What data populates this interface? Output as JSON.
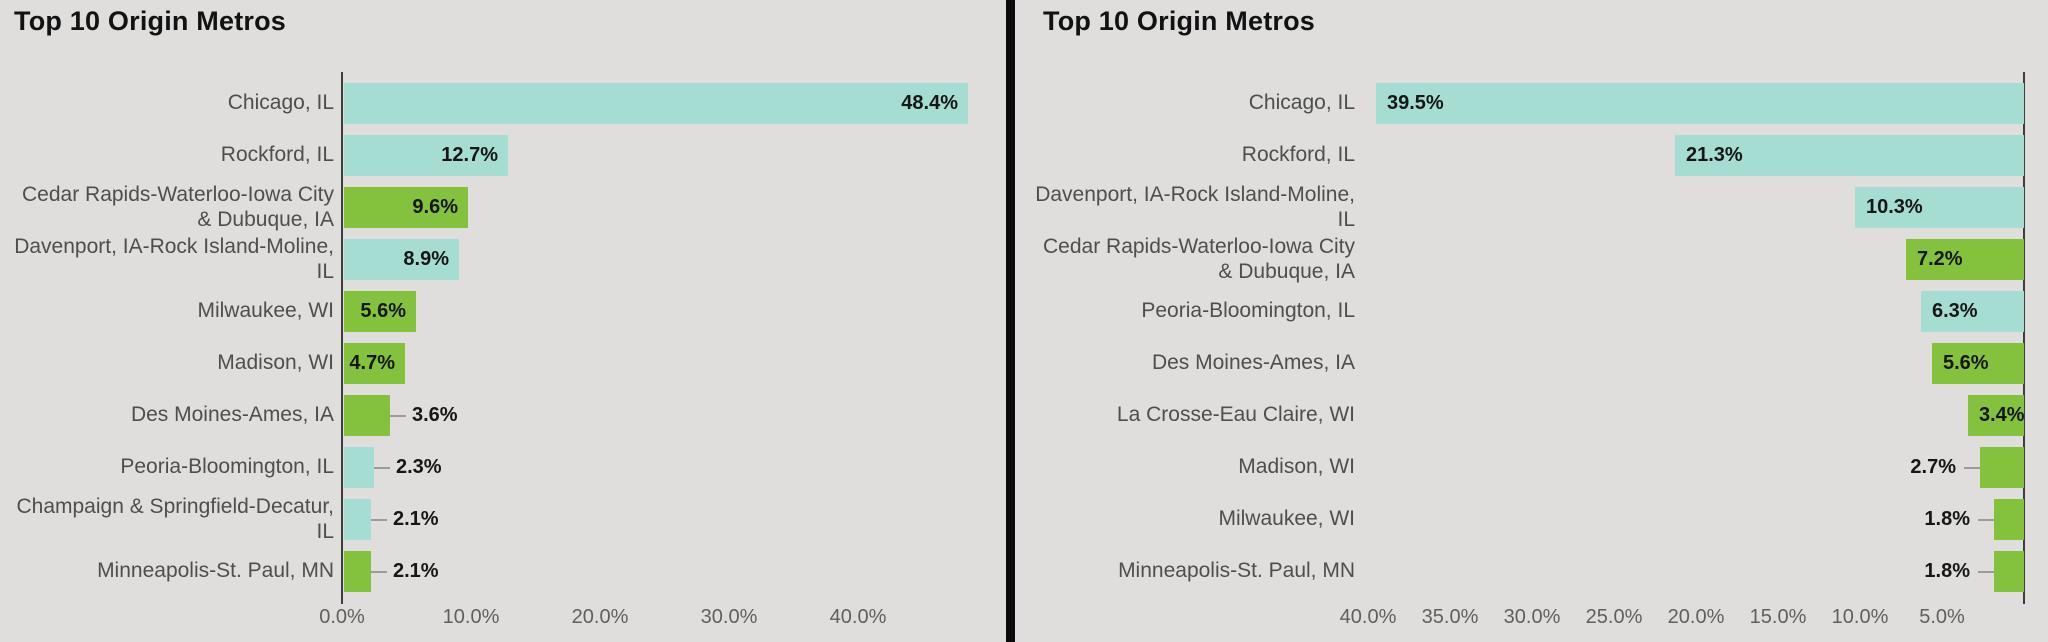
{
  "page": {
    "background_color": "#dfdedc",
    "divider_color": "#0b0b0b"
  },
  "colors": {
    "teal_bar": "#a6ddd2",
    "green_bar": "#84c23e",
    "axis_line": "#3a3f3c",
    "category_text": "#4e4e4e",
    "value_text": "#161616",
    "tick_text": "#5f5f5f",
    "leader_line": "#9b9b98",
    "title_text": "#121212"
  },
  "chart_data": [
    {
      "type": "bar",
      "orientation": "horizontal",
      "direction": "left-to-right",
      "title": "Top 10 Origin Metros",
      "xlabel": "",
      "ylabel": "",
      "grid": false,
      "legend": false,
      "axis_range_percent": [
        0,
        51.5
      ],
      "x_tick_labels": [
        "0.0%",
        "10.0%",
        "20.0%",
        "30.0%",
        "40.0%"
      ],
      "x_tick_values": [
        0,
        10,
        20,
        30,
        40
      ],
      "categories": [
        "Chicago, IL",
        "Rockford, IL",
        "Cedar Rapids-Waterloo-Iowa City & Dubuque, IA",
        "Davenport, IA-Rock Island-Moline, IL",
        "Milwaukee, WI",
        "Madison, WI",
        "Des Moines-Ames, IA",
        "Peoria-Bloomington, IL",
        "Champaign & Springfield-Decatur, IL",
        "Minneapolis-St. Paul, MN"
      ],
      "category_lines": [
        [
          "Chicago, IL"
        ],
        [
          "Rockford, IL"
        ],
        [
          "Cedar Rapids-Waterloo-Iowa City",
          "& Dubuque, IA"
        ],
        [
          "Davenport, IA-Rock Island-Moline,",
          "IL"
        ],
        [
          "Milwaukee, WI"
        ],
        [
          "Madison, WI"
        ],
        [
          "Des Moines-Ames, IA"
        ],
        [
          "Peoria-Bloomington, IL"
        ],
        [
          "Champaign & Springfield-Decatur,",
          "IL"
        ],
        [
          "Minneapolis-St. Paul, MN"
        ]
      ],
      "values": [
        48.4,
        12.7,
        9.6,
        8.9,
        5.6,
        4.7,
        3.6,
        2.3,
        2.1,
        2.1
      ],
      "value_labels": [
        "48.4%",
        "12.7%",
        "9.6%",
        "8.9%",
        "5.6%",
        "4.7%",
        "3.6%",
        "2.3%",
        "2.1%",
        "2.1%"
      ],
      "bar_color_keys": [
        "teal_bar",
        "teal_bar",
        "green_bar",
        "teal_bar",
        "green_bar",
        "green_bar",
        "green_bar",
        "teal_bar",
        "teal_bar",
        "green_bar"
      ]
    },
    {
      "type": "bar",
      "orientation": "horizontal",
      "direction": "right-to-left",
      "title": "Top 10 Origin Metros",
      "xlabel": "",
      "ylabel": "",
      "grid": false,
      "legend": false,
      "axis_range_percent": [
        0,
        61.5
      ],
      "x_tick_labels": [
        "40.0%",
        "35.0%",
        "30.0%",
        "25.0%",
        "20.0%",
        "15.0%",
        "10.0%",
        "5.0%"
      ],
      "x_tick_values": [
        40,
        35,
        30,
        25,
        20,
        15,
        10,
        5
      ],
      "categories": [
        "Chicago, IL",
        "Rockford, IL",
        "Davenport, IA-Rock Island-Moline, IL",
        "Cedar Rapids-Waterloo-Iowa City & Dubuque, IA",
        "Peoria-Bloomington, IL",
        "Des Moines-Ames, IA",
        "La Crosse-Eau Claire, WI",
        "Madison, WI",
        "Milwaukee, WI",
        "Minneapolis-St. Paul, MN"
      ],
      "category_lines": [
        [
          "Chicago, IL"
        ],
        [
          "Rockford, IL"
        ],
        [
          "Davenport, IA-Rock Island-Moline,",
          "IL"
        ],
        [
          "Cedar Rapids-Waterloo-Iowa City",
          "& Dubuque, IA"
        ],
        [
          "Peoria-Bloomington, IL"
        ],
        [
          "Des Moines-Ames, IA"
        ],
        [
          "La Crosse-Eau Claire, WI"
        ],
        [
          "Madison, WI"
        ],
        [
          "Milwaukee, WI"
        ],
        [
          "Minneapolis-St. Paul, MN"
        ]
      ],
      "values": [
        39.5,
        21.3,
        10.3,
        7.2,
        6.3,
        5.6,
        3.4,
        2.7,
        1.8,
        1.8
      ],
      "value_labels": [
        "39.5%",
        "21.3%",
        "10.3%",
        "7.2%",
        "6.3%",
        "5.6%",
        "3.4%",
        "2.7%",
        "1.8%",
        "1.8%"
      ],
      "bar_color_keys": [
        "teal_bar",
        "teal_bar",
        "teal_bar",
        "green_bar",
        "teal_bar",
        "green_bar",
        "green_bar",
        "green_bar",
        "green_bar",
        "green_bar"
      ]
    }
  ]
}
